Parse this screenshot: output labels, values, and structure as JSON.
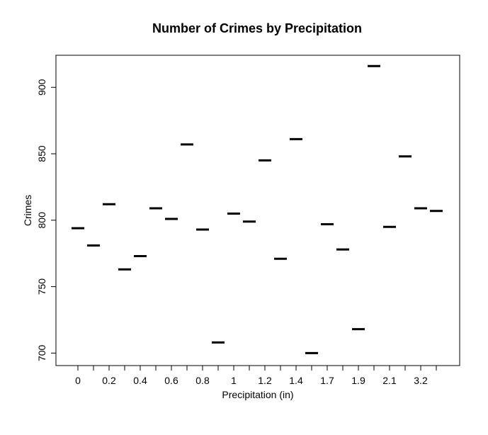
{
  "chart_data": {
    "type": "scatter",
    "marker": "horizontal-dash",
    "title": "Number of Crimes by Precipitation",
    "xlabel": "Precipitation (in)",
    "ylabel": "Crimes",
    "categories": [
      "0",
      "0.1",
      "0.2",
      "0.3",
      "0.4",
      "0.5",
      "0.6",
      "0.7",
      "0.8",
      "0.9",
      "1",
      "1.1",
      "1.2",
      "1.3",
      "1.4",
      "1.5",
      "1.7",
      "1.8",
      "1.9",
      "2",
      "2.1",
      "2.2",
      "3.2",
      "3.3"
    ],
    "x_tick_labels": [
      {
        "index": 0,
        "label": "0"
      },
      {
        "index": 2,
        "label": "0.2"
      },
      {
        "index": 4,
        "label": "0.4"
      },
      {
        "index": 6,
        "label": "0.6"
      },
      {
        "index": 8,
        "label": "0.8"
      },
      {
        "index": 10,
        "label": "1"
      },
      {
        "index": 12,
        "label": "1.2"
      },
      {
        "index": 14,
        "label": "1.4"
      },
      {
        "index": 16,
        "label": "1.7"
      },
      {
        "index": 18,
        "label": "1.9"
      },
      {
        "index": 20,
        "label": "2.1"
      },
      {
        "index": 22,
        "label": "3.2"
      }
    ],
    "values": [
      794,
      781,
      812,
      763,
      773,
      809,
      801,
      857,
      793,
      708,
      805,
      799,
      845,
      771,
      861,
      700,
      797,
      778,
      718,
      916,
      795,
      848,
      809,
      807
    ],
    "yticks": [
      700,
      750,
      800,
      850,
      900
    ],
    "ylim": [
      697,
      922
    ],
    "grid": false
  }
}
